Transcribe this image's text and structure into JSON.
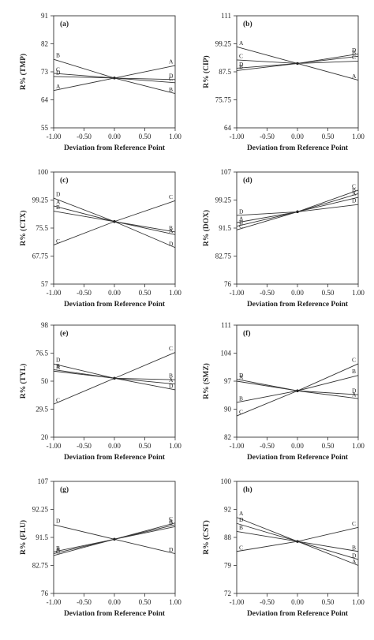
{
  "figure": {
    "panels": [
      {
        "id": "a",
        "tag": "(a)",
        "ylabel": "R% (TMP)",
        "xlabel": "Deviation from Reference Point"
      },
      {
        "id": "b",
        "tag": "(b)",
        "ylabel": "R% (CIP)",
        "xlabel": "Deviation from Reference Point"
      },
      {
        "id": "c",
        "tag": "(c)",
        "ylabel": "R% (CTX)",
        "xlabel": "Deviation from Reference Point"
      },
      {
        "id": "d",
        "tag": "(d)",
        "ylabel": "R% (DOX)",
        "xlabel": "Deviation from Reference Point"
      },
      {
        "id": "e",
        "tag": "(e)",
        "ylabel": "R% (TYL)",
        "xlabel": "Deviation from Reference Point"
      },
      {
        "id": "f",
        "tag": "(f)",
        "ylabel": "R% (SMZ)",
        "xlabel": "Deviation from Reference Point"
      },
      {
        "id": "g",
        "tag": "(g)",
        "ylabel": "R% (FLU)",
        "xlabel": "Deviation from Reference Point"
      },
      {
        "id": "h",
        "tag": "(h)",
        "ylabel": "R% (CST)",
        "xlabel": "Deviation from Reference Point"
      }
    ]
  },
  "chart_data": [
    {
      "type": "line",
      "title": "(a)",
      "xlabel": "Deviation from Reference Point",
      "ylabel": "R% (TMP)",
      "xlim": [
        -1,
        1
      ],
      "ylim": [
        55,
        91
      ],
      "xticks": [
        "-1.00",
        "-0.50",
        "0.00",
        "0.50",
        "1.00"
      ],
      "yticks": [
        "55",
        "64",
        "73",
        "82",
        "91"
      ],
      "series": [
        {
          "name": "A",
          "x": [
            -1,
            0,
            1
          ],
          "y": [
            67,
            71,
            75
          ]
        },
        {
          "name": "B",
          "x": [
            -1,
            0,
            1
          ],
          "y": [
            77,
            71,
            66
          ]
        },
        {
          "name": "C",
          "x": [
            -1,
            0,
            1
          ],
          "y": [
            72.5,
            71,
            69.5
          ]
        },
        {
          "name": "D",
          "x": [
            -1,
            0,
            1
          ],
          "y": [
            71.5,
            71,
            70.5
          ]
        }
      ]
    },
    {
      "type": "line",
      "title": "(b)",
      "xlabel": "Deviation from Reference Point",
      "ylabel": "R% (CIP)",
      "xlim": [
        -1,
        1
      ],
      "ylim": [
        64,
        111
      ],
      "xticks": [
        "-1.00",
        "-0.50",
        "0.00",
        "0.50",
        "1.00"
      ],
      "yticks": [
        "64",
        "75.75",
        "87.5",
        "99.25",
        "111"
      ],
      "series": [
        {
          "name": "A",
          "x": [
            -1,
            0,
            1
          ],
          "y": [
            98,
            91,
            84
          ]
        },
        {
          "name": "B",
          "x": [
            -1,
            0,
            1
          ],
          "y": [
            88,
            91,
            94
          ]
        },
        {
          "name": "C",
          "x": [
            -1,
            0,
            1
          ],
          "y": [
            92.5,
            91,
            92
          ]
        },
        {
          "name": "D",
          "x": [
            -1,
            0,
            1
          ],
          "y": [
            89,
            91,
            95
          ]
        }
      ]
    },
    {
      "type": "line",
      "title": "(c)",
      "xlabel": "Deviation from Reference Point",
      "ylabel": "R% (CTX)",
      "xlim": [
        -1,
        1
      ],
      "ylim": [
        57,
        100
      ],
      "xticks": [
        "-1.00",
        "-0.50",
        "0.00",
        "0.50",
        "1.00"
      ],
      "yticks": [
        "57",
        "67.75",
        "75.5",
        "99.25",
        "100"
      ],
      "series": [
        {
          "name": "A",
          "x": [
            -1,
            0,
            1
          ],
          "y": [
            87,
            81,
            76
          ]
        },
        {
          "name": "B",
          "x": [
            -1,
            0,
            1
          ],
          "y": [
            85,
            81,
            77
          ]
        },
        {
          "name": "C",
          "x": [
            -1,
            0,
            1
          ],
          "y": [
            72,
            81,
            89
          ]
        },
        {
          "name": "D",
          "x": [
            -1,
            0,
            1
          ],
          "y": [
            90,
            81,
            71
          ]
        }
      ]
    },
    {
      "type": "line",
      "title": "(d)",
      "xlabel": "Deviation from Reference Point",
      "ylabel": "R% (DOX)",
      "xlim": [
        -1,
        1
      ],
      "ylim": [
        76,
        107
      ],
      "xticks": [
        "-1.00",
        "-0.50",
        "0.00",
        "0.50",
        "1.00"
      ],
      "yticks": [
        "76",
        "82.75",
        "91.5",
        "99.25",
        "107"
      ],
      "series": [
        {
          "name": "A",
          "x": [
            -1,
            0,
            1
          ],
          "y": [
            93,
            96,
            100
          ]
        },
        {
          "name": "B",
          "x": [
            -1,
            0,
            1
          ],
          "y": [
            92,
            96,
            101
          ]
        },
        {
          "name": "C",
          "x": [
            -1,
            0,
            1
          ],
          "y": [
            91,
            96,
            102
          ]
        },
        {
          "name": "D",
          "x": [
            -1,
            0,
            1
          ],
          "y": [
            95,
            96,
            98
          ]
        }
      ]
    },
    {
      "type": "line",
      "title": "(e)",
      "xlabel": "Deviation from Reference Point",
      "ylabel": "R% (TYL)",
      "xlim": [
        -1,
        1
      ],
      "ylim": [
        20,
        98
      ],
      "xticks": [
        "-1.00",
        "-0.50",
        "0.00",
        "0.50",
        "1.00"
      ],
      "yticks": [
        "20",
        "29.5",
        "50",
        "76.5",
        "98"
      ],
      "series": [
        {
          "name": "A",
          "x": [
            -1,
            0,
            1
          ],
          "y": [
            66,
            61,
            57
          ]
        },
        {
          "name": "B",
          "x": [
            -1,
            0,
            1
          ],
          "y": [
            67,
            61,
            60
          ]
        },
        {
          "name": "C",
          "x": [
            -1,
            0,
            1
          ],
          "y": [
            43,
            61,
            79
          ]
        },
        {
          "name": "D",
          "x": [
            -1,
            0,
            1
          ],
          "y": [
            71,
            61,
            53
          ]
        }
      ]
    },
    {
      "type": "line",
      "title": "(f)",
      "xlabel": "Deviation from Reference Point",
      "ylabel": "R% (SMZ)",
      "xlim": [
        -1,
        1
      ],
      "ylim": [
        82,
        111
      ],
      "xticks": [
        "-1.00",
        "-0.50",
        "0.00",
        "0.50",
        "1.00"
      ],
      "yticks": [
        "82",
        "90",
        "97",
        "104",
        "111"
      ],
      "series": [
        {
          "name": "A",
          "x": [
            -1,
            0,
            1
          ],
          "y": [
            96.5,
            94,
            92
          ]
        },
        {
          "name": "B",
          "x": [
            -1,
            0,
            1
          ],
          "y": [
            91,
            94,
            98
          ]
        },
        {
          "name": "C",
          "x": [
            -1,
            0,
            1
          ],
          "y": [
            87.5,
            94,
            101
          ]
        },
        {
          "name": "D",
          "x": [
            -1,
            0,
            1
          ],
          "y": [
            97,
            94,
            93
          ]
        }
      ]
    },
    {
      "type": "line",
      "title": "(g)",
      "xlabel": "Deviation from Reference Point",
      "ylabel": "R% (FLU)",
      "xlim": [
        -1,
        1
      ],
      "ylim": [
        76,
        107
      ],
      "xticks": [
        "-1.00",
        "-0.50",
        "0.00",
        "0.50",
        "1.00"
      ],
      "yticks": [
        "76",
        "82.75",
        "91.5",
        "92.25",
        "107"
      ],
      "series": [
        {
          "name": "A",
          "x": [
            -1,
            0,
            1
          ],
          "y": [
            87,
            91,
            95
          ]
        },
        {
          "name": "B",
          "x": [
            -1,
            0,
            1
          ],
          "y": [
            87.5,
            91,
            94.5
          ]
        },
        {
          "name": "C",
          "x": [
            -1,
            0,
            1
          ],
          "y": [
            86.5,
            91,
            95.5
          ]
        },
        {
          "name": "D",
          "x": [
            -1,
            0,
            1
          ],
          "y": [
            95,
            91,
            87
          ]
        }
      ]
    },
    {
      "type": "line",
      "title": "(h)",
      "xlabel": "Deviation from Reference Point",
      "ylabel": "R% (CST)",
      "xlim": [
        -1,
        1
      ],
      "ylim": [
        72,
        100
      ],
      "xticks": [
        "-1.00",
        "-0.50",
        "0.00",
        "0.50",
        "1.00"
      ],
      "yticks": [
        "72",
        "79",
        "88",
        "92",
        "100"
      ],
      "series": [
        {
          "name": "A",
          "x": [
            -1,
            0,
            1
          ],
          "y": [
            91,
            85,
            79
          ]
        },
        {
          "name": "B",
          "x": [
            -1,
            0,
            1
          ],
          "y": [
            87.5,
            85,
            82.5
          ]
        },
        {
          "name": "C",
          "x": [
            -1,
            0,
            1
          ],
          "y": [
            82.5,
            85,
            88.5
          ]
        },
        {
          "name": "D",
          "x": [
            -1,
            0,
            1
          ],
          "y": [
            89.5,
            85,
            80.5
          ]
        }
      ]
    }
  ]
}
